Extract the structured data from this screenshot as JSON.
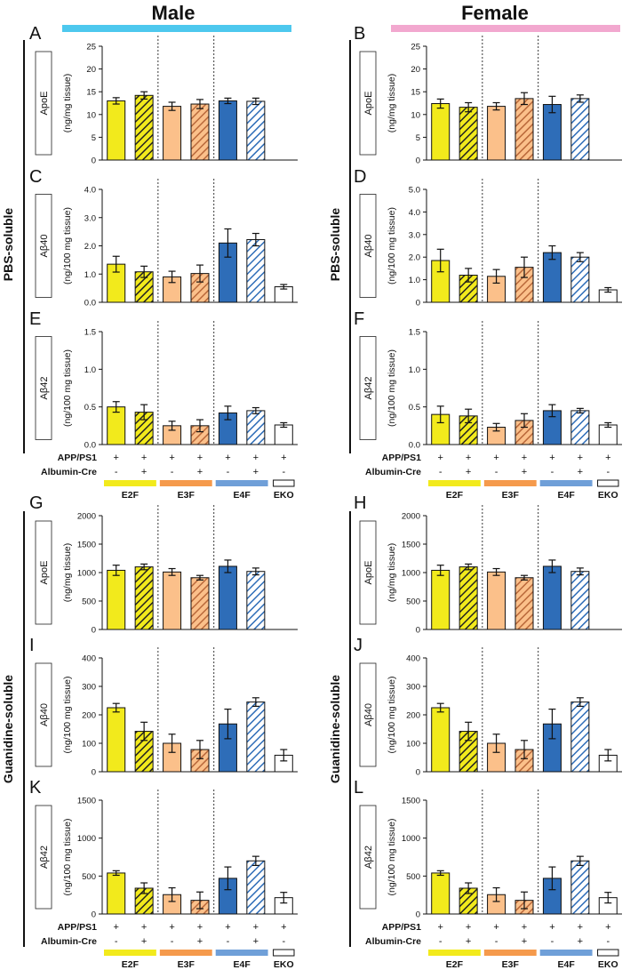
{
  "headers": {
    "male": "Male",
    "female": "Female"
  },
  "sections": {
    "pbs": "PBS-soluble",
    "guanidine": "Guanidine-soluble"
  },
  "colors": {
    "male_bar": "#4dc8ee",
    "female_bar": "#f2a8cf",
    "E2F": "#f2ea1c",
    "E3F": "#fbc08a",
    "E4F": "#2e6db8",
    "EKO": "#ffffff",
    "E2F_legend": "#f2ea1c",
    "E3F_legend": "#f59a4c",
    "E4F_legend": "#6f9fd8",
    "E3F_hatch": "#b9683a",
    "E4F_hatch": "#2e6db8"
  },
  "legend": {
    "app_label": "APP/PS1",
    "cre_label": "Albumin-Cre",
    "app_signs": [
      "+",
      "+",
      "+",
      "+",
      "+",
      "+",
      "+"
    ],
    "cre_signs": [
      "-",
      "+",
      "-",
      "+",
      "-",
      "+",
      "-"
    ],
    "groups": [
      "E2F",
      "E3F",
      "E4F",
      "EKO"
    ]
  },
  "chart_data": [
    {
      "panel": "A",
      "type": "bar",
      "sex": "male",
      "title": "ApoE",
      "ylabel": "(ng/mg tissue)",
      "ylim": [
        0,
        25
      ],
      "yticks": [
        "0",
        "5",
        "10",
        "15",
        "20",
        "25"
      ],
      "has_eko": false,
      "categories": [
        "E2F Cre-",
        "E2F Cre+",
        "E3F Cre-",
        "E3F Cre+",
        "E4F Cre-",
        "E4F Cre+"
      ],
      "values": [
        13,
        14.2,
        11.8,
        12.3,
        13,
        12.9
      ],
      "errors": [
        0.7,
        0.8,
        0.9,
        1.0,
        0.6,
        0.7
      ]
    },
    {
      "panel": "B",
      "type": "bar",
      "sex": "female",
      "title": "ApoE",
      "ylabel": "(ng/mg tissue)",
      "ylim": [
        0,
        25
      ],
      "yticks": [
        "0",
        "5",
        "10",
        "15",
        "20",
        "25"
      ],
      "has_eko": false,
      "categories": [
        "E2F Cre-",
        "E2F Cre+",
        "E3F Cre-",
        "E3F Cre+",
        "E4F Cre-",
        "E4F Cre+"
      ],
      "values": [
        12.4,
        11.6,
        11.8,
        13.5,
        12.2,
        13.5
      ],
      "errors": [
        1.0,
        1.0,
        0.8,
        1.3,
        1.8,
        0.8
      ]
    },
    {
      "panel": "C",
      "type": "bar",
      "sex": "male",
      "title": "Aβ40",
      "ylabel": "(ng/100 mg tissue)",
      "ylim": [
        0,
        4
      ],
      "yticks": [
        "0.0",
        "1.0",
        "2.0",
        "3.0",
        "4.0"
      ],
      "has_eko": true,
      "categories": [
        "E2F Cre-",
        "E2F Cre+",
        "E3F Cre-",
        "E3F Cre+",
        "E4F Cre-",
        "E4F Cre+",
        "EKO"
      ],
      "values": [
        1.35,
        1.08,
        0.9,
        1.02,
        2.1,
        2.22,
        0.55
      ],
      "errors": [
        0.28,
        0.2,
        0.2,
        0.3,
        0.5,
        0.22,
        0.08
      ]
    },
    {
      "panel": "D",
      "type": "bar",
      "sex": "female",
      "title": "Aβ40",
      "ylabel": "(ng/100 mg tissue)",
      "ylim": [
        0,
        5
      ],
      "yticks": [
        "0",
        "1.0",
        "2.0",
        "3.0",
        "4.0",
        "5.0"
      ],
      "has_eko": true,
      "categories": [
        "E2F Cre-",
        "E2F Cre+",
        "E3F Cre-",
        "E3F Cre+",
        "E4F Cre-",
        "E4F Cre+",
        "EKO"
      ],
      "values": [
        1.85,
        1.2,
        1.15,
        1.55,
        2.2,
        2.0,
        0.55
      ],
      "errors": [
        0.5,
        0.3,
        0.3,
        0.45,
        0.3,
        0.2,
        0.1
      ]
    },
    {
      "panel": "E",
      "type": "bar",
      "sex": "male",
      "title": "Aβ42",
      "ylabel": "(ng/100 mg tissue)",
      "ylim": [
        0,
        1.5
      ],
      "yticks": [
        "0.0",
        "0.5",
        "1.0",
        "1.5"
      ],
      "has_eko": true,
      "categories": [
        "E2F Cre-",
        "E2F Cre+",
        "E3F Cre-",
        "E3F Cre+",
        "E4F Cre-",
        "E4F Cre+",
        "EKO"
      ],
      "values": [
        0.5,
        0.43,
        0.25,
        0.25,
        0.42,
        0.45,
        0.26
      ],
      "errors": [
        0.07,
        0.1,
        0.06,
        0.08,
        0.09,
        0.04,
        0.03
      ]
    },
    {
      "panel": "F",
      "type": "bar",
      "sex": "female",
      "title": "Aβ42",
      "ylabel": "(ng/100 mg tissue)",
      "ylim": [
        0,
        1.5
      ],
      "yticks": [
        "0.0",
        "0.5",
        "1.0",
        "1.5"
      ],
      "has_eko": true,
      "categories": [
        "E2F Cre-",
        "E2F Cre+",
        "E3F Cre-",
        "E3F Cre+",
        "E4F Cre-",
        "E4F Cre+",
        "EKO"
      ],
      "values": [
        0.4,
        0.38,
        0.23,
        0.32,
        0.45,
        0.45,
        0.26
      ],
      "errors": [
        0.11,
        0.09,
        0.05,
        0.09,
        0.08,
        0.03,
        0.03
      ]
    },
    {
      "panel": "G",
      "type": "bar",
      "sex": "male",
      "title": "ApoE",
      "ylabel": "(ng/mg tissue)",
      "ylim": [
        0,
        2000
      ],
      "yticks": [
        "0",
        "500",
        "1000",
        "1500",
        "2000"
      ],
      "has_eko": false,
      "categories": [
        "E2F Cre-",
        "E2F Cre+",
        "E3F Cre-",
        "E3F Cre+",
        "E4F Cre-",
        "E4F Cre+"
      ],
      "values": [
        1040,
        1100,
        1010,
        910,
        1110,
        1020
      ],
      "errors": [
        90,
        50,
        60,
        40,
        110,
        60
      ]
    },
    {
      "panel": "H",
      "type": "bar",
      "sex": "female",
      "title": "ApoE",
      "ylabel": "(ng/mg tissue)",
      "ylim": [
        0,
        2000
      ],
      "yticks": [
        "0",
        "500",
        "1000",
        "1500",
        "2000"
      ],
      "has_eko": false,
      "categories": [
        "E2F Cre-",
        "E2F Cre+",
        "E3F Cre-",
        "E3F Cre+",
        "E4F Cre-",
        "E4F Cre+"
      ],
      "values": [
        1040,
        1100,
        1010,
        910,
        1110,
        1020
      ],
      "errors": [
        90,
        50,
        60,
        40,
        110,
        60
      ]
    },
    {
      "panel": "I",
      "type": "bar",
      "sex": "male",
      "title": "Aβ40",
      "ylabel": "(ng/100 mg tissue)",
      "ylim": [
        0,
        400
      ],
      "yticks": [
        "0",
        "100",
        "200",
        "300",
        "400"
      ],
      "has_eko": true,
      "categories": [
        "E2F Cre-",
        "E2F Cre+",
        "E3F Cre-",
        "E3F Cre+",
        "E4F Cre-",
        "E4F Cre+",
        "EKO"
      ],
      "values": [
        225,
        142,
        100,
        78,
        168,
        245,
        58
      ],
      "errors": [
        15,
        32,
        32,
        32,
        52,
        15,
        20
      ]
    },
    {
      "panel": "J",
      "type": "bar",
      "sex": "female",
      "title": "Aβ40",
      "ylabel": "(ng/100 mg tissue)",
      "ylim": [
        0,
        400
      ],
      "yticks": [
        "0",
        "100",
        "200",
        "300",
        "400"
      ],
      "has_eko": true,
      "categories": [
        "E2F Cre-",
        "E2F Cre+",
        "E3F Cre-",
        "E3F Cre+",
        "E4F Cre-",
        "E4F Cre+",
        "EKO"
      ],
      "values": [
        225,
        142,
        100,
        78,
        168,
        245,
        58
      ],
      "errors": [
        15,
        32,
        32,
        32,
        52,
        15,
        20
      ]
    },
    {
      "panel": "K",
      "type": "bar",
      "sex": "male",
      "title": "Aβ42",
      "ylabel": "(ng/100 mg tissue)",
      "ylim": [
        0,
        1500
      ],
      "yticks": [
        "0",
        "500",
        "1000",
        "1500"
      ],
      "has_eko": true,
      "categories": [
        "E2F Cre-",
        "E2F Cre+",
        "E3F Cre-",
        "E3F Cre+",
        "E4F Cre-",
        "E4F Cre+",
        "EKO"
      ],
      "values": [
        540,
        340,
        255,
        180,
        470,
        700,
        215
      ],
      "errors": [
        30,
        70,
        90,
        110,
        150,
        60,
        70
      ]
    },
    {
      "panel": "L",
      "type": "bar",
      "sex": "female",
      "title": "Aβ42",
      "ylabel": "(ng/100 mg tissue)",
      "ylim": [
        0,
        1500
      ],
      "yticks": [
        "0",
        "500",
        "1000",
        "1500"
      ],
      "has_eko": true,
      "categories": [
        "E2F Cre-",
        "E2F Cre+",
        "E3F Cre-",
        "E3F Cre+",
        "E4F Cre-",
        "E4F Cre+",
        "EKO"
      ],
      "values": [
        540,
        340,
        255,
        180,
        470,
        700,
        215
      ],
      "errors": [
        30,
        70,
        90,
        110,
        150,
        60,
        70
      ]
    }
  ]
}
